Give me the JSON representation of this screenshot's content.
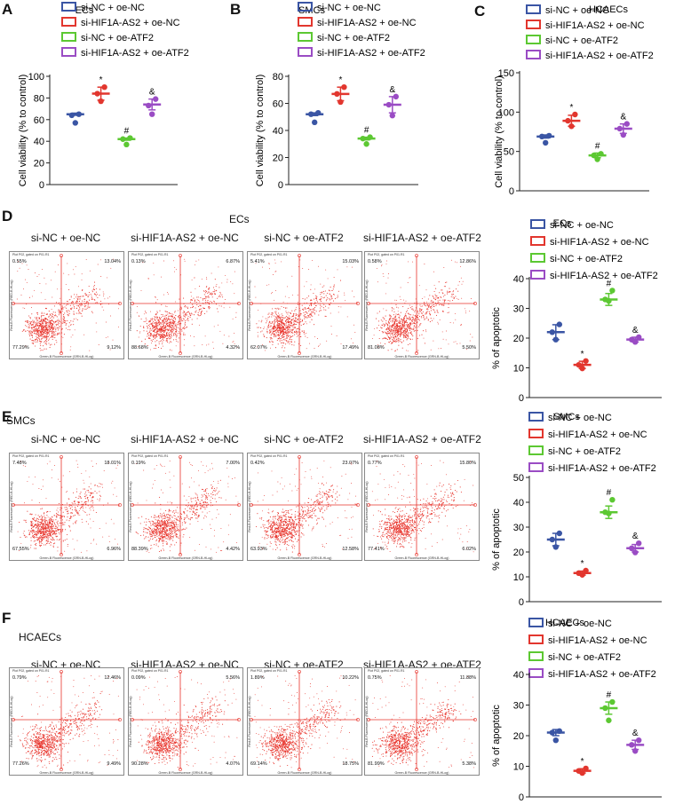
{
  "panels": {
    "A": "A",
    "B": "B",
    "C": "C",
    "D": "D",
    "E": "E",
    "F": "F"
  },
  "legend_entries": [
    "si-NC + oe-NC",
    "si-HIF1A-AS2 + oe-NC",
    "si-NC + oe-ATF2",
    "si-HIF1A-AS2 + oe-ATF2"
  ],
  "colors": {
    "si-NC + oe-NC": "#3a55a4",
    "si-HIF1A-AS2 + oe-NC": "#e2362e",
    "si-NC + oe-ATF2": "#5cc832",
    "si-HIF1A-AS2 + oe-ATF2": "#9a4cc4",
    "dots": "#e8322a",
    "gate": "#e8322a"
  },
  "chart_data": [
    {
      "id": "chart-a",
      "type": "scatter",
      "title": "ECs",
      "ylabel": "Cell viability (% to control)",
      "ylim": [
        0,
        100
      ],
      "yticks": [
        0,
        20,
        40,
        60,
        80,
        100
      ],
      "legend": "top",
      "groups": [
        "si-NC + oe-NC",
        "si-HIF1A-AS2 + oe-NC",
        "si-NC + oe-ATF2",
        "si-HIF1A-AS2 + oe-ATF2"
      ],
      "series": [
        {
          "name": "si-NC + oe-NC",
          "values": [
            65,
            64,
            57
          ],
          "mean": 65,
          "sd": 1,
          "marker": ""
        },
        {
          "name": "si-HIF1A-AS2 + oe-NC",
          "values": [
            90,
            84,
            77
          ],
          "mean": 84,
          "sd": 6,
          "marker": "*"
        },
        {
          "name": "si-NC + oe-ATF2",
          "values": [
            43,
            42,
            37
          ],
          "mean": 42,
          "sd": 1,
          "marker": "#"
        },
        {
          "name": "si-HIF1A-AS2 + oe-ATF2",
          "values": [
            79,
            73,
            65
          ],
          "mean": 74,
          "sd": 5,
          "marker": "&"
        }
      ]
    },
    {
      "id": "chart-b",
      "type": "scatter",
      "title": "SMCs",
      "ylabel": "Cell viability (% to control)",
      "ylim": [
        0,
        80
      ],
      "yticks": [
        0,
        20,
        40,
        60,
        80
      ],
      "legend": "top",
      "groups": [
        "si-NC + oe-NC",
        "si-HIF1A-AS2 + oe-NC",
        "si-NC + oe-ATF2",
        "si-HIF1A-AS2 + oe-ATF2"
      ],
      "series": [
        {
          "name": "si-NC + oe-NC",
          "values": [
            53,
            52,
            46
          ],
          "mean": 52,
          "sd": 1,
          "marker": ""
        },
        {
          "name": "si-HIF1A-AS2 + oe-NC",
          "values": [
            72,
            67,
            61
          ],
          "mean": 67,
          "sd": 5,
          "marker": "*"
        },
        {
          "name": "si-NC + oe-ATF2",
          "values": [
            35,
            34,
            30
          ],
          "mean": 34,
          "sd": 1,
          "marker": "#"
        },
        {
          "name": "si-HIF1A-AS2 + oe-ATF2",
          "values": [
            65,
            59,
            51
          ],
          "mean": 59,
          "sd": 6,
          "marker": "&"
        }
      ]
    },
    {
      "id": "chart-c",
      "type": "scatter",
      "title": "HCAECs",
      "ylabel": "Cell viability (% to control)",
      "ylim": [
        0,
        150
      ],
      "yticks": [
        0,
        50,
        100,
        150
      ],
      "legend": "top",
      "groups": [
        "si-NC + oe-NC",
        "si-HIF1A-AS2 + oe-NC",
        "si-NC + oe-ATF2",
        "si-HIF1A-AS2 + oe-ATF2"
      ],
      "series": [
        {
          "name": "si-NC + oe-NC",
          "values": [
            70,
            69,
            61
          ],
          "mean": 69,
          "sd": 2,
          "marker": ""
        },
        {
          "name": "si-HIF1A-AS2 + oe-NC",
          "values": [
            97,
            89,
            82
          ],
          "mean": 89,
          "sd": 7,
          "marker": "*"
        },
        {
          "name": "si-NC + oe-ATF2",
          "values": [
            47,
            45,
            40
          ],
          "mean": 45,
          "sd": 3,
          "marker": "#"
        },
        {
          "name": "si-HIF1A-AS2 + oe-ATF2",
          "values": [
            85,
            79,
            71
          ],
          "mean": 79,
          "sd": 6,
          "marker": "&"
        }
      ]
    },
    {
      "id": "chart-d",
      "type": "scatter",
      "title": "ECs",
      "ylabel": "% of apoptotic",
      "ylim": [
        0,
        40
      ],
      "yticks": [
        0,
        10,
        20,
        30,
        40
      ],
      "legend": "top",
      "groups": [
        "si-NC + oe-NC",
        "si-HIF1A-AS2 + oe-NC",
        "si-NC + oe-ATF2",
        "si-HIF1A-AS2 + oe-ATF2"
      ],
      "series": [
        {
          "name": "si-NC + oe-NC",
          "values": [
            24.6,
            22.0,
            19.5
          ],
          "mean": 22,
          "sd": 2.5,
          "marker": ""
        },
        {
          "name": "si-HIF1A-AS2 + oe-NC",
          "values": [
            12.3,
            11.0,
            9.8
          ],
          "mean": 11,
          "sd": 1.2,
          "marker": "*"
        },
        {
          "name": "si-NC + oe-ATF2",
          "values": [
            36,
            33,
            32.5
          ],
          "mean": 33,
          "sd": 2,
          "marker": "#"
        },
        {
          "name": "si-HIF1A-AS2 + oe-ATF2",
          "values": [
            20.3,
            19.5,
            18.7
          ],
          "mean": 19.5,
          "sd": 0.8,
          "marker": "&"
        }
      ]
    },
    {
      "id": "chart-e",
      "type": "scatter",
      "title": "SMCs",
      "ylabel": "% of apoptotic",
      "ylim": [
        0,
        50
      ],
      "yticks": [
        0,
        10,
        20,
        30,
        40,
        50
      ],
      "legend": "top",
      "groups": [
        "si-NC + oe-NC",
        "si-HIF1A-AS2 + oe-NC",
        "si-NC + oe-ATF2",
        "si-HIF1A-AS2 + oe-ATF2"
      ],
      "series": [
        {
          "name": "si-NC + oe-NC",
          "values": [
            27.5,
            25.0,
            22.0
          ],
          "mean": 25,
          "sd": 2.5,
          "marker": ""
        },
        {
          "name": "si-HIF1A-AS2 + oe-NC",
          "values": [
            12.5,
            11.5,
            10.8
          ],
          "mean": 11.5,
          "sd": 0.8,
          "marker": "*"
        },
        {
          "name": "si-NC + oe-ATF2",
          "values": [
            41,
            36,
            35.5
          ],
          "mean": 36,
          "sd": 2.5,
          "marker": "#"
        },
        {
          "name": "si-HIF1A-AS2 + oe-ATF2",
          "values": [
            23.5,
            21.5,
            19.8
          ],
          "mean": 21.5,
          "sd": 1.5,
          "marker": "&"
        }
      ]
    },
    {
      "id": "chart-f",
      "type": "scatter",
      "title": "HCAECs",
      "ylabel": "% of apoptotic",
      "ylim": [
        0,
        40
      ],
      "yticks": [
        0,
        10,
        20,
        30,
        40
      ],
      "legend": "top",
      "groups": [
        "si-NC + oe-NC",
        "si-HIF1A-AS2 + oe-NC",
        "si-NC + oe-ATF2",
        "si-HIF1A-AS2 + oe-ATF2"
      ],
      "series": [
        {
          "name": "si-NC + oe-NC",
          "values": [
            21.5,
            21.0,
            18.5
          ],
          "mean": 21,
          "sd": 1,
          "marker": ""
        },
        {
          "name": "si-HIF1A-AS2 + oe-NC",
          "values": [
            9.3,
            8.5,
            7.8
          ],
          "mean": 8.5,
          "sd": 0.7,
          "marker": "*"
        },
        {
          "name": "si-NC + oe-ATF2",
          "values": [
            31,
            29,
            25
          ],
          "mean": 29,
          "sd": 2,
          "marker": "#"
        },
        {
          "name": "si-HIF1A-AS2 + oe-ATF2",
          "values": [
            18.5,
            17,
            15
          ],
          "mean": 17,
          "sd": 1.5,
          "marker": "&"
        }
      ]
    }
  ],
  "flow_rows": [
    {
      "id": "flow-d",
      "title": "ECs",
      "plots": [
        {
          "title": "si-NC + oe-NC",
          "ul": "0.55%",
          "ur": "13.04%",
          "ll": "77.29%",
          "lr": "9.12%"
        },
        {
          "title": "si-HIF1A-AS2 + oe-NC",
          "ul": "0.13%",
          "ur": "6.87%",
          "ll": "88.68%",
          "lr": "4.32%"
        },
        {
          "title": "si-NC + oe-ATF2",
          "ul": "5.41%",
          "ur": "15.03%",
          "ll": "62.07%",
          "lr": "17.49%"
        },
        {
          "title": "si-HIF1A-AS2 + oe-ATF2",
          "ul": "0.58%",
          "ur": "12.86%",
          "ll": "81.08%",
          "lr": "5.50%"
        }
      ]
    },
    {
      "id": "flow-e",
      "title": "SMCs",
      "plots": [
        {
          "title": "si-NC + oe-NC",
          "ul": "7.48%",
          "ur": "18.01%",
          "ll": "67.55%",
          "lr": "6.96%"
        },
        {
          "title": "si-HIF1A-AS2 + oe-NC",
          "ul": "0.19%",
          "ur": "7.00%",
          "ll": "88.39%",
          "lr": "4.42%"
        },
        {
          "title": "si-NC + oe-ATF2",
          "ul": "0.42%",
          "ur": "23.07%",
          "ll": "63.93%",
          "lr": "12.58%"
        },
        {
          "title": "si-HIF1A-AS2 + oe-ATF2",
          "ul": "0.77%",
          "ur": "15.80%",
          "ll": "77.41%",
          "lr": "6.02%"
        }
      ]
    },
    {
      "id": "flow-f",
      "title": "HCAECs",
      "plots": [
        {
          "title": "si-NC + oe-NC",
          "ul": "0.79%",
          "ur": "12.46%",
          "ll": "77.26%",
          "lr": "9.49%"
        },
        {
          "title": "si-HIF1A-AS2 + oe-NC",
          "ul": "0.09%",
          "ur": "5.56%",
          "ll": "90.28%",
          "lr": "4.07%"
        },
        {
          "title": "si-NC + oe-ATF2",
          "ul": "1.89%",
          "ur": "10.22%",
          "ll": "69.14%",
          "lr": "18.75%"
        },
        {
          "title": "si-HIF1A-AS2 + oe-ATF2",
          "ul": "0.75%",
          "ur": "11.88%",
          "ll": "81.99%",
          "lr": "5.38%"
        }
      ]
    }
  ],
  "flow_axis": {
    "gate_label": "Plot P02, gated on P01.R1",
    "x_label": "Green-B Fluorescence (GRN-B-HLog)",
    "y_label": "Red-B Fluorescence (RED-B-HLog)"
  }
}
